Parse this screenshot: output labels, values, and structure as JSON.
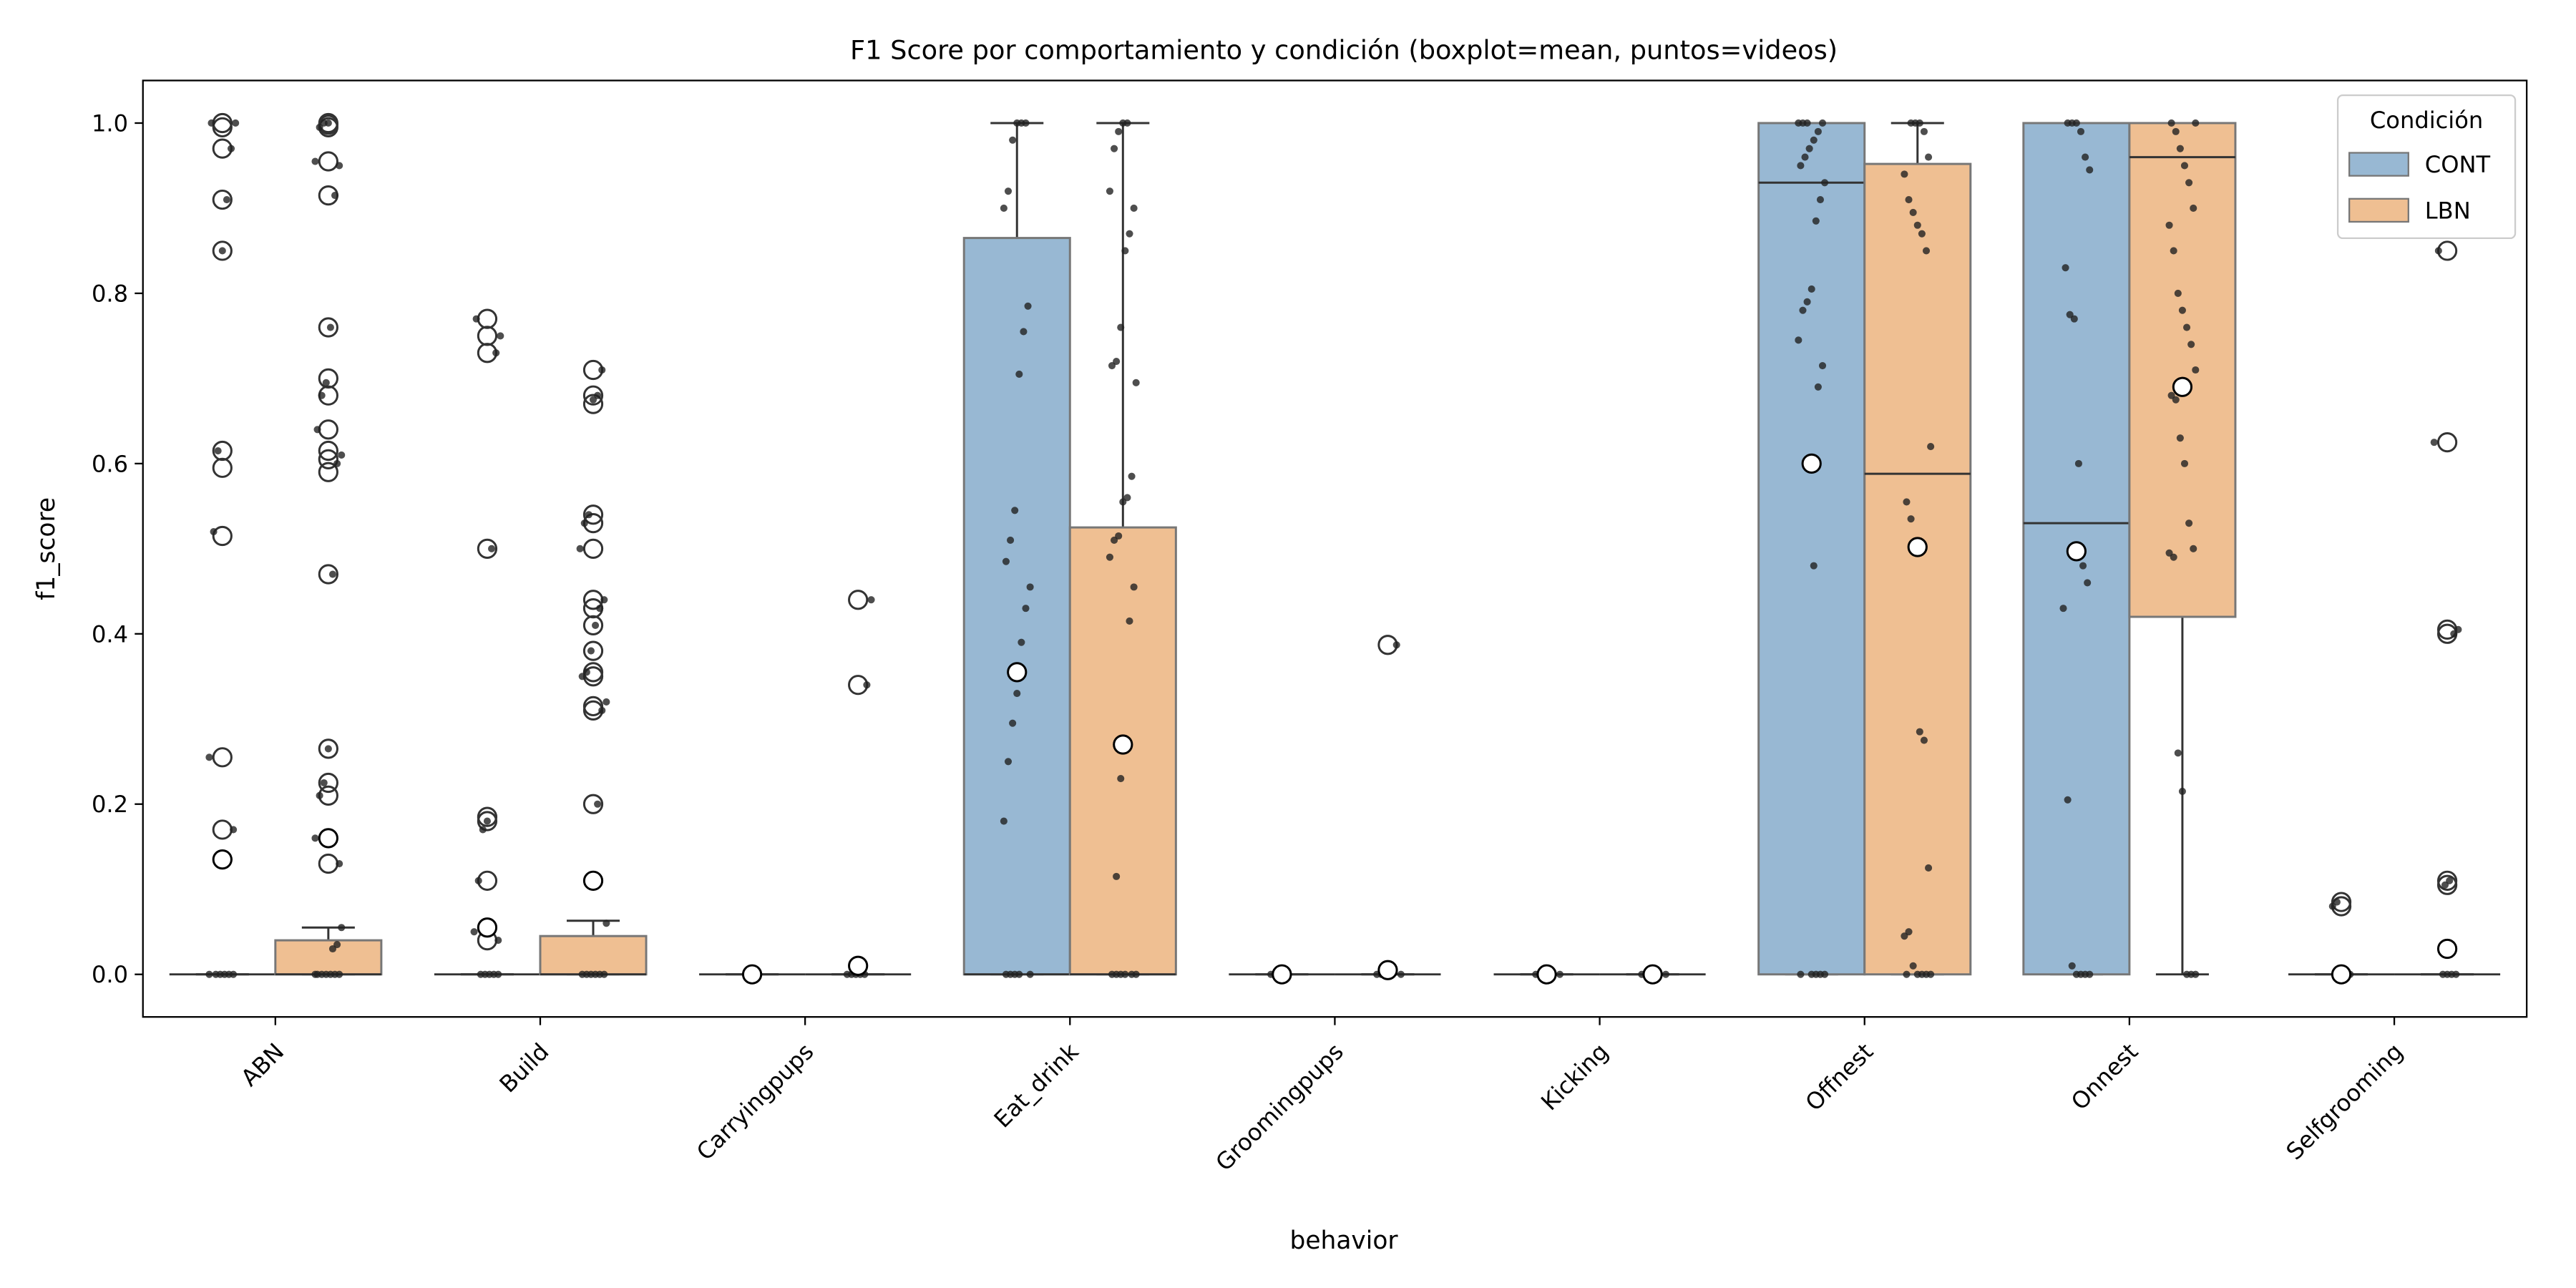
{
  "chart_data": {
    "type": "box",
    "title": "F1 Score por comportamiento y condición (boxplot=mean, puntos=videos)",
    "x_label": "behavior",
    "y_label": "f1_score",
    "categories": [
      "ABN",
      "Build",
      "Carryingpups",
      "Eat_drink",
      "Groomingpups",
      "Kicking",
      "Offnest",
      "Onnest",
      "Selfgrooming"
    ],
    "ylim": [
      -0.05,
      1.05
    ],
    "yticks": [
      {
        "value": 0,
        "label": "0.0"
      },
      {
        "value": 0.2,
        "label": "0.2"
      },
      {
        "value": 0.4,
        "label": "0.4"
      },
      {
        "value": 0.6,
        "label": "0.6"
      },
      {
        "value": 0.8,
        "label": "0.8"
      },
      {
        "value": 1,
        "label": "1.0"
      }
    ],
    "legend_title": "Condición",
    "legend_corner": "upper right",
    "series": [
      {
        "name": "CONT",
        "color": "#98b8d3",
        "boxes": [
          {
            "q1": 0,
            "median": 0,
            "q3": 0,
            "whislo": 0,
            "whishi": 0,
            "mean": 0.135,
            "fliers": [
              1,
              0.995,
              0.97,
              0.91,
              0.85,
              0.615,
              0.595,
              0.515,
              0.255,
              0.17
            ],
            "videos": [
              0,
              0,
              0,
              0,
              0,
              0,
              1,
              1,
              0.97,
              0.91,
              0.85,
              0.615,
              0.52,
              0.255,
              0.17,
              0.135
            ]
          },
          {
            "q1": 0,
            "median": 0,
            "q3": 0,
            "whislo": 0,
            "whishi": 0,
            "mean": 0.055,
            "fliers": [
              0.77,
              0.75,
              0.73,
              0.5,
              0.185,
              0.18,
              0.11,
              0.04
            ],
            "videos": [
              0,
              0,
              0,
              0,
              0,
              0.77,
              0.75,
              0.73,
              0.5,
              0.18,
              0.17,
              0.11,
              0.05,
              0.04
            ]
          },
          {
            "q1": 0,
            "median": 0,
            "q3": 0,
            "whislo": 0,
            "whishi": 0,
            "mean": 0,
            "fliers": [],
            "videos": [
              0,
              0,
              0,
              0
            ]
          },
          {
            "q1": 0,
            "median": 0,
            "q3": 0.865,
            "whislo": 0,
            "whishi": 1,
            "mean": 0.355,
            "fliers": [],
            "videos": [
              0,
              0,
              0,
              0,
              0,
              1,
              1,
              1,
              0.98,
              0.92,
              0.9,
              0.785,
              0.755,
              0.705,
              0.545,
              0.51,
              0.485,
              0.455,
              0.43,
              0.39,
              0.33,
              0.295,
              0.25,
              0.18
            ]
          },
          {
            "q1": 0,
            "median": 0,
            "q3": 0,
            "whislo": 0,
            "whishi": 0,
            "mean": 0,
            "fliers": [],
            "videos": [
              0,
              0,
              0
            ]
          },
          {
            "q1": 0,
            "median": 0,
            "q3": 0,
            "whislo": 0,
            "whishi": 0,
            "mean": 0,
            "fliers": [],
            "videos": [
              0,
              0,
              0
            ]
          },
          {
            "q1": 0,
            "median": 0.93,
            "q3": 1,
            "whislo": 0,
            "whishi": 1,
            "mean": 0.6,
            "fliers": [],
            "videos": [
              0,
              0,
              0,
              0,
              0,
              1,
              1,
              1,
              1,
              0.99,
              0.98,
              0.97,
              0.96,
              0.95,
              0.93,
              0.91,
              0.885,
              0.805,
              0.79,
              0.78,
              0.745,
              0.715,
              0.69,
              0.48
            ]
          },
          {
            "q1": 0,
            "median": 0.53,
            "q3": 1,
            "whislo": 0,
            "whishi": 1,
            "mean": 0.497,
            "fliers": [],
            "videos": [
              0,
              0,
              0,
              0,
              0.01,
              0.205,
              0.43,
              0.46,
              0.48,
              0.6,
              0.77,
              0.775,
              0.83,
              0.945,
              0.96,
              0.99,
              1,
              1,
              1
            ]
          },
          {
            "q1": 0,
            "median": 0,
            "q3": 0,
            "whislo": 0,
            "whishi": 0,
            "mean": 0,
            "fliers": [
              0.085,
              0.08
            ],
            "videos": [
              0,
              0,
              0,
              0.085,
              0.08
            ]
          }
        ]
      },
      {
        "name": "LBN",
        "color": "#efbf92",
        "boxes": [
          {
            "q1": 0,
            "median": 0,
            "q3": 0.04,
            "whislo": 0,
            "whishi": 0.055,
            "mean": 0.16,
            "fliers": [
              1,
              0.998,
              0.995,
              0.955,
              0.915,
              0.76,
              0.7,
              0.68,
              0.64,
              0.615,
              0.605,
              0.59,
              0.47,
              0.265,
              0.225,
              0.21,
              0.13
            ],
            "videos": [
              0,
              0,
              0,
              0,
              0,
              0,
              0,
              0.055,
              0.035,
              0.03,
              1,
              1,
              0.995,
              0.955,
              0.95,
              0.915,
              0.76,
              0.695,
              0.68,
              0.64,
              0.61,
              0.6,
              0.47,
              0.265,
              0.225,
              0.21,
              0.16,
              0.13
            ]
          },
          {
            "q1": 0,
            "median": 0,
            "q3": 0.045,
            "whislo": 0,
            "whishi": 0.063,
            "mean": 0.11,
            "fliers": [
              0.71,
              0.68,
              0.67,
              0.54,
              0.53,
              0.5,
              0.44,
              0.43,
              0.41,
              0.38,
              0.355,
              0.35,
              0.315,
              0.31,
              0.2
            ],
            "videos": [
              0,
              0,
              0,
              0,
              0,
              0,
              0.06,
              0.71,
              0.68,
              0.675,
              0.54,
              0.53,
              0.5,
              0.44,
              0.43,
              0.41,
              0.38,
              0.355,
              0.35,
              0.32,
              0.31,
              0.2,
              0.11
            ]
          },
          {
            "q1": 0,
            "median": 0,
            "q3": 0,
            "whislo": 0,
            "whishi": 0,
            "mean": 0.01,
            "fliers": [
              0.44,
              0.34
            ],
            "videos": [
              0,
              0,
              0,
              0,
              0,
              0.44,
              0.34,
              0.01
            ]
          },
          {
            "q1": 0,
            "median": 0,
            "q3": 0.525,
            "whislo": 0,
            "whishi": 1,
            "mean": 0.27,
            "fliers": [],
            "videos": [
              0,
              0,
              0,
              0,
              0,
              0,
              1,
              1,
              0.99,
              0.97,
              0.92,
              0.9,
              0.87,
              0.85,
              0.76,
              0.72,
              0.715,
              0.695,
              0.585,
              0.56,
              0.555,
              0.515,
              0.51,
              0.49,
              0.455,
              0.415,
              0.265,
              0.23,
              0.115
            ]
          },
          {
            "q1": 0,
            "median": 0,
            "q3": 0,
            "whislo": 0,
            "whishi": 0,
            "mean": 0.005,
            "fliers": [
              0.387
            ],
            "videos": [
              0,
              0,
              0,
              0,
              0.387
            ]
          },
          {
            "q1": 0,
            "median": 0,
            "q3": 0,
            "whislo": 0,
            "whishi": 0,
            "mean": 0,
            "fliers": [],
            "videos": [
              0,
              0,
              0
            ]
          },
          {
            "q1": 0,
            "median": 0.588,
            "q3": 0.952,
            "whislo": 0,
            "whishi": 1,
            "mean": 0.502,
            "fliers": [],
            "videos": [
              0,
              0,
              0,
              0,
              0,
              0.01,
              0.05,
              0.045,
              0.125,
              0.275,
              0.285,
              0.5,
              0.535,
              0.555,
              0.62,
              0.85,
              0.87,
              0.88,
              0.895,
              0.91,
              0.94,
              0.96,
              0.99,
              1,
              1,
              1
            ]
          },
          {
            "q1": 0.42,
            "median": 0.96,
            "q3": 1,
            "whislo": 0,
            "whishi": 1,
            "mean": 0.69,
            "fliers": [],
            "videos": [
              0,
              0,
              0,
              0.215,
              0.26,
              0.49,
              0.495,
              0.5,
              0.53,
              0.6,
              0.63,
              0.675,
              0.68,
              0.71,
              0.74,
              0.76,
              0.78,
              0.8,
              0.85,
              0.88,
              0.9,
              0.93,
              0.95,
              0.97,
              0.99,
              1,
              1
            ]
          },
          {
            "q1": 0,
            "median": 0,
            "q3": 0,
            "whislo": 0,
            "whishi": 0,
            "mean": 0.03,
            "fliers": [
              0.85,
              0.625,
              0.405,
              0.4,
              0.11,
              0.105
            ],
            "videos": [
              0,
              0,
              0,
              0,
              0.85,
              0.625,
              0.405,
              0.4,
              0.11,
              0.105
            ]
          }
        ]
      }
    ]
  }
}
